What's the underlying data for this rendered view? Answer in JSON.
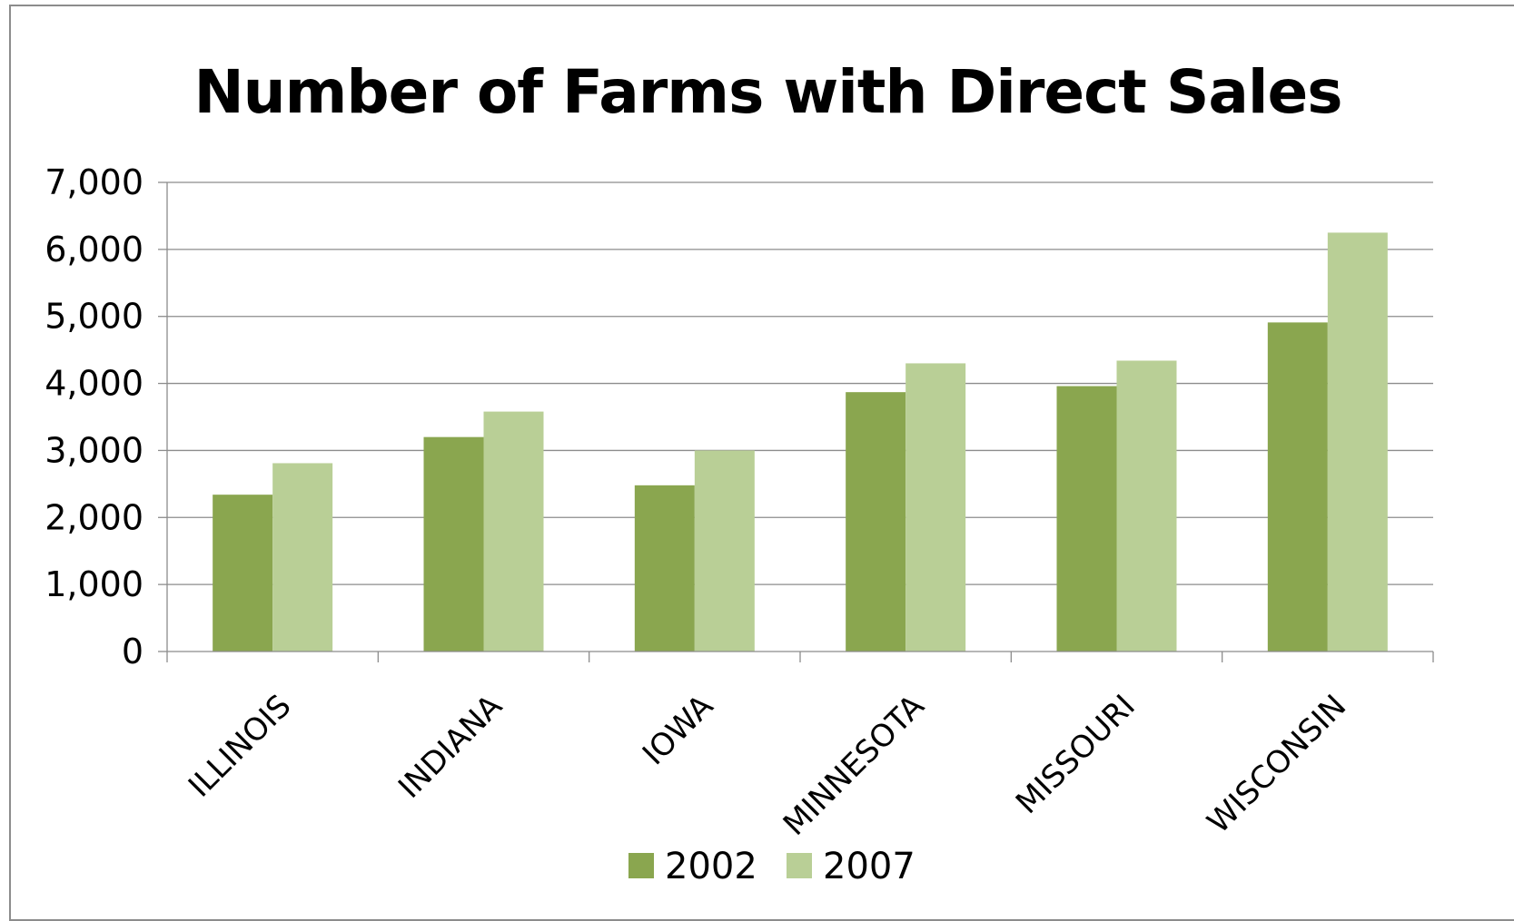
{
  "chart_data": {
    "type": "bar",
    "title": "Number of Farms with Direct Sales",
    "xlabel": "",
    "ylabel": "",
    "categories": [
      "ILLINOIS",
      "INDIANA",
      "IOWA",
      "MINNESOTA",
      "MISSOURI",
      "WISCONSIN"
    ],
    "series": [
      {
        "name": "2002",
        "color": "#8aa64f",
        "values": [
          2340,
          3200,
          2480,
          3870,
          3960,
          4910
        ]
      },
      {
        "name": "2007",
        "color": "#b9cf96",
        "values": [
          2810,
          3580,
          3000,
          4300,
          4340,
          6250
        ]
      }
    ],
    "ylim": [
      0,
      7000
    ],
    "yticks": [
      "0",
      "1,000",
      "2,000",
      "3,000",
      "4,000",
      "5,000",
      "6,000",
      "7,000"
    ],
    "grid": true,
    "legend": "bottom"
  }
}
